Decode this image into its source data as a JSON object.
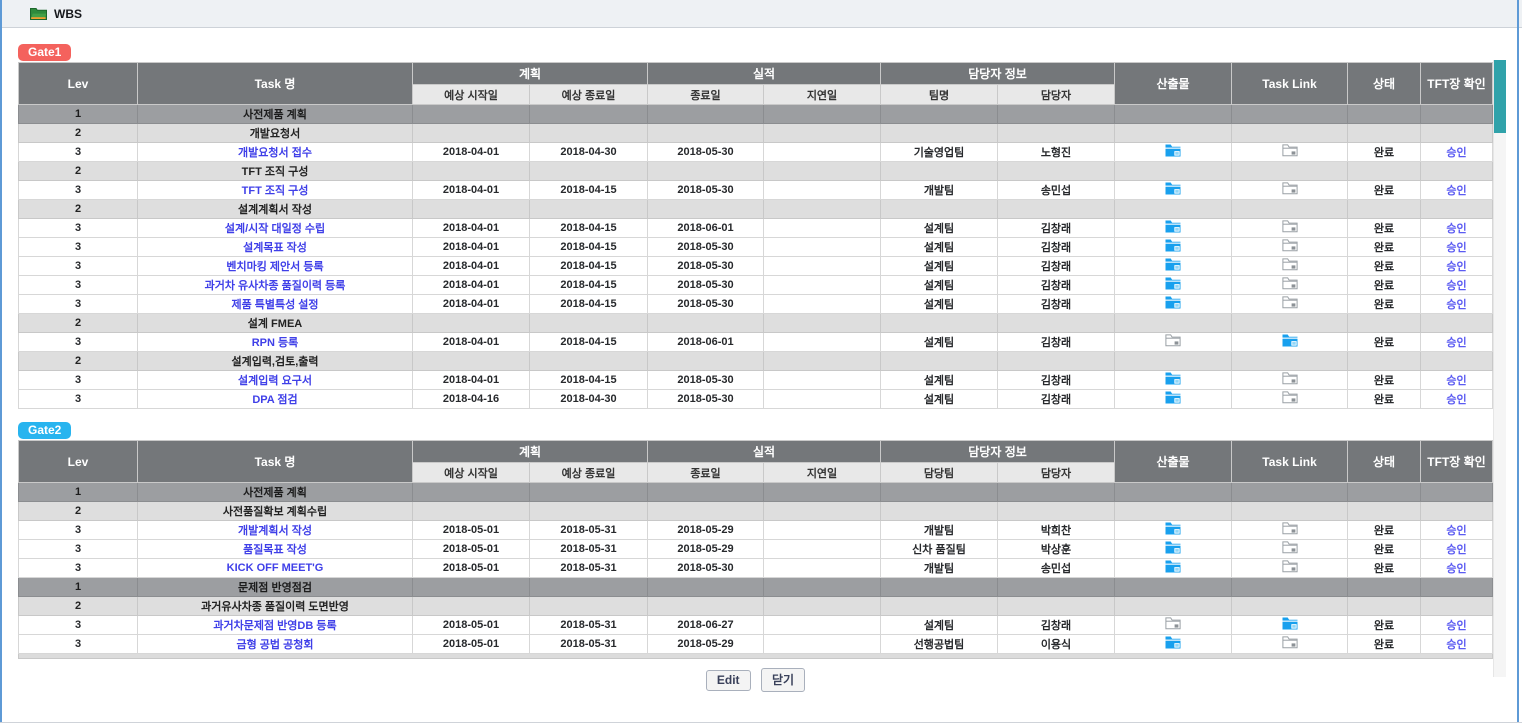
{
  "titlebar": {
    "title": "WBS",
    "icon": "green-folder-icon"
  },
  "headers": {
    "lev": "Lev",
    "task": "Task 명",
    "plan": "계획",
    "actual": "실적",
    "owner_info": "담당자 정보",
    "plan_start": "예상 시작일",
    "plan_end": "예상 종료일",
    "actual_end": "종료일",
    "delay": "지연일",
    "owner": "담당자",
    "deliverable": "산출물",
    "task_link": "Task Link",
    "status": "상태",
    "tft_confirm": "TFT장 확인"
  },
  "colors": {
    "gate1_badge": "#f4625d",
    "gate2_badge": "#28b4ef",
    "header_bg": "#74777a",
    "lev1_row_bg": "#9c9ea1",
    "lev2_row_bg": "#dedede",
    "task_link_text": "#3f3fe8",
    "approve_link_text": "#5b5bf2",
    "folder_blue": "#18a0ee",
    "folder_gray": "#9aa0a5",
    "scrollbar_thumb": "#30a2aa"
  },
  "gates": [
    {
      "label": "Gate1",
      "team_header": "팀명",
      "rows": [
        {
          "lev": "1",
          "type": "l1",
          "task": "사전제품 계획"
        },
        {
          "lev": "2",
          "type": "l2",
          "task": "개발요청서"
        },
        {
          "lev": "3",
          "type": "l3",
          "task": "개발요청서 접수",
          "plan_start": "2018-04-01",
          "plan_end": "2018-04-30",
          "actual_end": "2018-05-30",
          "delay": "",
          "team": "기술영업팀",
          "owner": "노형진",
          "deliverable": "blue-folder-icon",
          "task_link": "gray-folder-icon",
          "status": "완료",
          "confirm": "승인"
        },
        {
          "lev": "2",
          "type": "l2",
          "task": "TFT 조직 구성"
        },
        {
          "lev": "3",
          "type": "l3",
          "task": "TFT 조직 구성",
          "plan_start": "2018-04-01",
          "plan_end": "2018-04-15",
          "actual_end": "2018-05-30",
          "delay": "",
          "team": "개발팀",
          "owner": "송민섭",
          "deliverable": "blue-folder-icon",
          "task_link": "gray-folder-icon",
          "status": "완료",
          "confirm": "승인"
        },
        {
          "lev": "2",
          "type": "l2",
          "task": "설계계획서 작성"
        },
        {
          "lev": "3",
          "type": "l3",
          "task": "설계/시작 대일정 수립",
          "plan_start": "2018-04-01",
          "plan_end": "2018-04-15",
          "actual_end": "2018-06-01",
          "delay": "",
          "team": "설계팀",
          "owner": "김창래",
          "deliverable": "blue-folder-icon",
          "task_link": "gray-folder-icon",
          "status": "완료",
          "confirm": "승인"
        },
        {
          "lev": "3",
          "type": "l3",
          "task": "설계목표 작성",
          "plan_start": "2018-04-01",
          "plan_end": "2018-04-15",
          "actual_end": "2018-05-30",
          "delay": "",
          "team": "설계팀",
          "owner": "김창래",
          "deliverable": "blue-folder-icon",
          "task_link": "gray-folder-icon",
          "status": "완료",
          "confirm": "승인"
        },
        {
          "lev": "3",
          "type": "l3",
          "task": "벤치마킹 제안서 등록",
          "plan_start": "2018-04-01",
          "plan_end": "2018-04-15",
          "actual_end": "2018-05-30",
          "delay": "",
          "team": "설계팀",
          "owner": "김창래",
          "deliverable": "blue-folder-icon",
          "task_link": "gray-folder-icon",
          "status": "완료",
          "confirm": "승인"
        },
        {
          "lev": "3",
          "type": "l3",
          "task": "과거차 유사차종 품질이력 등록",
          "plan_start": "2018-04-01",
          "plan_end": "2018-04-15",
          "actual_end": "2018-05-30",
          "delay": "",
          "team": "설계팀",
          "owner": "김창래",
          "deliverable": "blue-folder-icon",
          "task_link": "gray-folder-icon",
          "status": "완료",
          "confirm": "승인"
        },
        {
          "lev": "3",
          "type": "l3",
          "task": "제품 특별특성 설정",
          "plan_start": "2018-04-01",
          "plan_end": "2018-04-15",
          "actual_end": "2018-05-30",
          "delay": "",
          "team": "설계팀",
          "owner": "김창래",
          "deliverable": "blue-folder-icon",
          "task_link": "gray-folder-icon",
          "status": "완료",
          "confirm": "승인"
        },
        {
          "lev": "2",
          "type": "l2",
          "task": "설계 FMEA"
        },
        {
          "lev": "3",
          "type": "l3",
          "task": "RPN 등록",
          "plan_start": "2018-04-01",
          "plan_end": "2018-04-15",
          "actual_end": "2018-06-01",
          "delay": "",
          "team": "설계팀",
          "owner": "김창래",
          "deliverable": "gray-folder-icon",
          "task_link": "blue-folder-icon",
          "status": "완료",
          "confirm": "승인"
        },
        {
          "lev": "2",
          "type": "l2",
          "task": "설계입력,검토,출력"
        },
        {
          "lev": "3",
          "type": "l3",
          "task": "설계입력 요구서",
          "plan_start": "2018-04-01",
          "plan_end": "2018-04-15",
          "actual_end": "2018-05-30",
          "delay": "",
          "team": "설계팀",
          "owner": "김창래",
          "deliverable": "blue-folder-icon",
          "task_link": "gray-folder-icon",
          "status": "완료",
          "confirm": "승인"
        },
        {
          "lev": "3",
          "type": "l3",
          "task": "DPA 점검",
          "plan_start": "2018-04-16",
          "plan_end": "2018-04-30",
          "actual_end": "2018-05-30",
          "delay": "",
          "team": "설계팀",
          "owner": "김창래",
          "deliverable": "blue-folder-icon",
          "task_link": "gray-folder-icon",
          "status": "완료",
          "confirm": "승인"
        }
      ]
    },
    {
      "label": "Gate2",
      "team_header": "담당팀",
      "rows": [
        {
          "lev": "1",
          "type": "l1",
          "task": "사전제품 계획"
        },
        {
          "lev": "2",
          "type": "l2",
          "task": "사전품질확보 계획수립"
        },
        {
          "lev": "3",
          "type": "l3",
          "task": "개발계획서 작성",
          "plan_start": "2018-05-01",
          "plan_end": "2018-05-31",
          "actual_end": "2018-05-29",
          "delay": "",
          "team": "개발팀",
          "owner": "박희찬",
          "deliverable": "blue-folder-icon",
          "task_link": "gray-folder-icon",
          "status": "완료",
          "confirm": "승인"
        },
        {
          "lev": "3",
          "type": "l3",
          "task": "품질목표 작성",
          "plan_start": "2018-05-01",
          "plan_end": "2018-05-31",
          "actual_end": "2018-05-29",
          "delay": "",
          "team": "신차 품질팀",
          "owner": "박상훈",
          "deliverable": "blue-folder-icon",
          "task_link": "gray-folder-icon",
          "status": "완료",
          "confirm": "승인"
        },
        {
          "lev": "3",
          "type": "l3",
          "task": "KICK OFF MEET'G",
          "plan_start": "2018-05-01",
          "plan_end": "2018-05-31",
          "actual_end": "2018-05-30",
          "delay": "",
          "team": "개발팀",
          "owner": "송민섭",
          "deliverable": "blue-folder-icon",
          "task_link": "gray-folder-icon",
          "status": "완료",
          "confirm": "승인"
        },
        {
          "lev": "1",
          "type": "l1",
          "task": "문제점 반영점검"
        },
        {
          "lev": "2",
          "type": "l2",
          "task": "과거유사차종 품질이력 도면반영"
        },
        {
          "lev": "3",
          "type": "l3",
          "task": "과거차문제점 반영DB 등록",
          "plan_start": "2018-05-01",
          "plan_end": "2018-05-31",
          "actual_end": "2018-06-27",
          "delay": "",
          "team": "설계팀",
          "owner": "김창래",
          "deliverable": "gray-folder-icon",
          "task_link": "blue-folder-icon",
          "status": "완료",
          "confirm": "승인"
        },
        {
          "lev": "3",
          "type": "l3",
          "task": "금형 공법 공청회",
          "plan_start": "2018-05-01",
          "plan_end": "2018-05-31",
          "actual_end": "2018-05-29",
          "delay": "",
          "team": "선행공법팀",
          "owner": "이용식",
          "deliverable": "blue-folder-icon",
          "task_link": "gray-folder-icon",
          "status": "완료",
          "confirm": "승인"
        }
      ]
    }
  ],
  "footer": {
    "edit": "Edit",
    "close": "닫기"
  }
}
